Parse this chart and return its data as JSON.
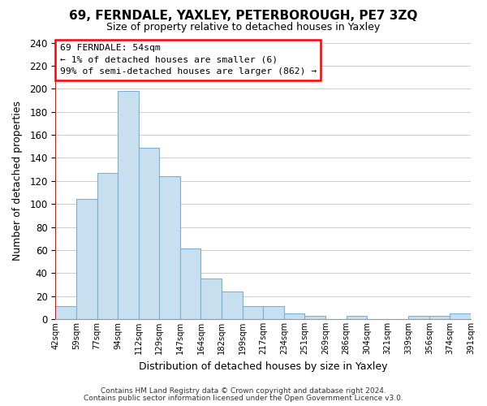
{
  "title": "69, FERNDALE, YAXLEY, PETERBOROUGH, PE7 3ZQ",
  "subtitle": "Size of property relative to detached houses in Yaxley",
  "xlabel": "Distribution of detached houses by size in Yaxley",
  "ylabel": "Number of detached properties",
  "bar_color": "#c8dff0",
  "bar_edge_color": "#7ab0d4",
  "bin_labels": [
    "42sqm",
    "59sqm",
    "77sqm",
    "94sqm",
    "112sqm",
    "129sqm",
    "147sqm",
    "164sqm",
    "182sqm",
    "199sqm",
    "217sqm",
    "234sqm",
    "251sqm",
    "269sqm",
    "286sqm",
    "304sqm",
    "321sqm",
    "339sqm",
    "356sqm",
    "374sqm",
    "391sqm"
  ],
  "bar_heights": [
    11,
    104,
    127,
    198,
    149,
    124,
    61,
    35,
    24,
    11,
    11,
    5,
    3,
    0,
    3,
    0,
    0,
    3,
    3,
    5
  ],
  "ylim": [
    0,
    240
  ],
  "yticks": [
    0,
    20,
    40,
    60,
    80,
    100,
    120,
    140,
    160,
    180,
    200,
    220,
    240
  ],
  "annotation_lines": [
    "69 FERNDALE: 54sqm",
    "← 1% of detached houses are smaller (6)",
    "99% of semi-detached houses are larger (862) →"
  ],
  "footer_line1": "Contains HM Land Registry data © Crown copyright and database right 2024.",
  "footer_line2": "Contains public sector information licensed under the Open Government Licence v3.0.",
  "background_color": "#ffffff",
  "grid_color": "#cccccc"
}
